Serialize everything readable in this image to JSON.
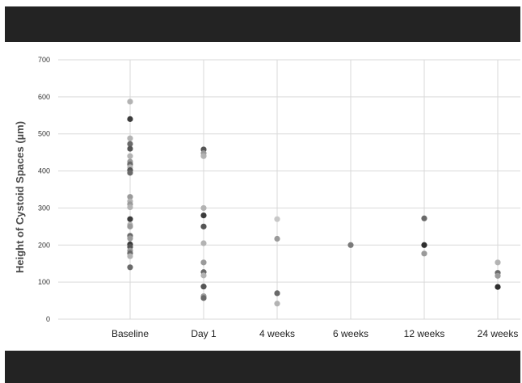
{
  "chart_data": {
    "type": "scatter",
    "title": "",
    "ylabel": "Height of Cystoid Spaces (µm)",
    "xlabel": "",
    "ylim": [
      0,
      700
    ],
    "yticks": [
      0,
      100,
      200,
      300,
      400,
      500,
      600,
      700
    ],
    "grid": true,
    "categories": [
      "Baseline",
      "Day 1",
      "4 weeks",
      "6 weeks",
      "12 weeks",
      "24 weeks"
    ],
    "points": [
      {
        "x": "Baseline",
        "y": 587,
        "shade": "#b3b3b3"
      },
      {
        "x": "Baseline",
        "y": 540,
        "shade": "#3c3c3c"
      },
      {
        "x": "Baseline",
        "y": 488,
        "shade": "#b3b3b3"
      },
      {
        "x": "Baseline",
        "y": 473,
        "shade": "#6a6a6a"
      },
      {
        "x": "Baseline",
        "y": 460,
        "shade": "#555555"
      },
      {
        "x": "Baseline",
        "y": 440,
        "shade": "#b3b3b3"
      },
      {
        "x": "Baseline",
        "y": 425,
        "shade": "#9a9a9a"
      },
      {
        "x": "Baseline",
        "y": 418,
        "shade": "#6a6a6a"
      },
      {
        "x": "Baseline",
        "y": 410,
        "shade": "#b3b3b3"
      },
      {
        "x": "Baseline",
        "y": 402,
        "shade": "#555555"
      },
      {
        "x": "Baseline",
        "y": 395,
        "shade": "#6a6a6a"
      },
      {
        "x": "Baseline",
        "y": 330,
        "shade": "#9a9a9a"
      },
      {
        "x": "Baseline",
        "y": 318,
        "shade": "#b3b3b3"
      },
      {
        "x": "Baseline",
        "y": 310,
        "shade": "#9a9a9a"
      },
      {
        "x": "Baseline",
        "y": 302,
        "shade": "#b3b3b3"
      },
      {
        "x": "Baseline",
        "y": 270,
        "shade": "#3c3c3c"
      },
      {
        "x": "Baseline",
        "y": 255,
        "shade": "#b3b3b3"
      },
      {
        "x": "Baseline",
        "y": 250,
        "shade": "#9a9a9a"
      },
      {
        "x": "Baseline",
        "y": 225,
        "shade": "#6a6a6a"
      },
      {
        "x": "Baseline",
        "y": 218,
        "shade": "#9a9a9a"
      },
      {
        "x": "Baseline",
        "y": 202,
        "shade": "#3c3c3c"
      },
      {
        "x": "Baseline",
        "y": 195,
        "shade": "#555555"
      },
      {
        "x": "Baseline",
        "y": 185,
        "shade": "#9a9a9a"
      },
      {
        "x": "Baseline",
        "y": 178,
        "shade": "#6a6a6a"
      },
      {
        "x": "Baseline",
        "y": 170,
        "shade": "#b3b3b3"
      },
      {
        "x": "Baseline",
        "y": 140,
        "shade": "#6a6a6a"
      },
      {
        "x": "Day 1",
        "y": 458,
        "shade": "#555555"
      },
      {
        "x": "Day 1",
        "y": 448,
        "shade": "#9a9a9a"
      },
      {
        "x": "Day 1",
        "y": 440,
        "shade": "#b3b3b3"
      },
      {
        "x": "Day 1",
        "y": 300,
        "shade": "#b3b3b3"
      },
      {
        "x": "Day 1",
        "y": 280,
        "shade": "#3c3c3c"
      },
      {
        "x": "Day 1",
        "y": 250,
        "shade": "#555555"
      },
      {
        "x": "Day 1",
        "y": 205,
        "shade": "#b3b3b3"
      },
      {
        "x": "Day 1",
        "y": 153,
        "shade": "#9a9a9a"
      },
      {
        "x": "Day 1",
        "y": 127,
        "shade": "#6a6a6a"
      },
      {
        "x": "Day 1",
        "y": 118,
        "shade": "#b3b3b3"
      },
      {
        "x": "Day 1",
        "y": 88,
        "shade": "#555555"
      },
      {
        "x": "Day 1",
        "y": 62,
        "shade": "#9a9a9a"
      },
      {
        "x": "Day 1",
        "y": 57,
        "shade": "#6a6a6a"
      },
      {
        "x": "4 weeks",
        "y": 270,
        "shade": "#c8c8c8"
      },
      {
        "x": "4 weeks",
        "y": 217,
        "shade": "#9a9a9a"
      },
      {
        "x": "4 weeks",
        "y": 70,
        "shade": "#6a6a6a"
      },
      {
        "x": "4 weeks",
        "y": 42,
        "shade": "#b3b3b3"
      },
      {
        "x": "6 weeks",
        "y": 200,
        "shade": "#7a7a7a"
      },
      {
        "x": "12 weeks",
        "y": 272,
        "shade": "#6a6a6a"
      },
      {
        "x": "12 weeks",
        "y": 200,
        "shade": "#2e2e2e"
      },
      {
        "x": "12 weeks",
        "y": 177,
        "shade": "#9a9a9a"
      },
      {
        "x": "24 weeks",
        "y": 153,
        "shade": "#b3b3b3"
      },
      {
        "x": "24 weeks",
        "y": 125,
        "shade": "#6a6a6a"
      },
      {
        "x": "24 weeks",
        "y": 117,
        "shade": "#9a9a9a"
      },
      {
        "x": "24 weeks",
        "y": 87,
        "shade": "#2e2e2e"
      }
    ]
  }
}
